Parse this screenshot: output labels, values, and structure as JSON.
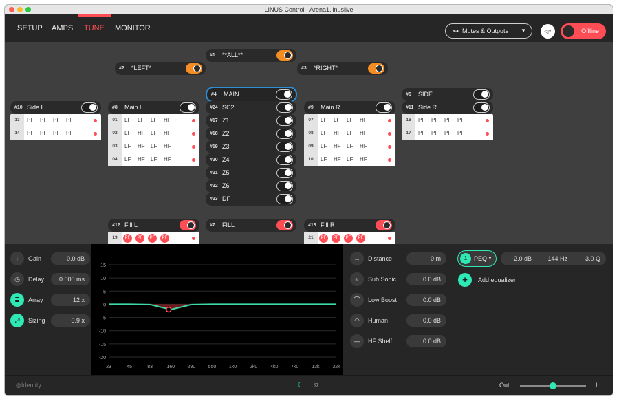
{
  "window_title": "LINUS Control - Arena1.linuslive",
  "tabs": [
    {
      "label": "SETUP"
    },
    {
      "label": "AMPS"
    },
    {
      "label": "TUNE"
    },
    {
      "label": "MONITOR"
    }
  ],
  "active_tab": "TUNE",
  "outputs_dropdown": {
    "label": "Mutes & Outputs"
  },
  "status": {
    "label": "Offline",
    "color": "#ff4d55"
  },
  "groups": {
    "all": {
      "num": "#1",
      "name": "**ALL**",
      "state": "orange"
    },
    "left": {
      "num": "#2",
      "name": "*LEFT*",
      "state": "orange"
    },
    "right": {
      "num": "#3",
      "name": "*RIGHT*",
      "state": "orange"
    },
    "main": {
      "num": "#4",
      "name": "MAIN",
      "state": "on"
    },
    "sc2": {
      "num": "#24",
      "name": "SC2",
      "state": "on"
    },
    "z1": {
      "num": "#17",
      "name": "Z1",
      "state": "on"
    },
    "z2": {
      "num": "#18",
      "name": "Z2",
      "state": "on"
    },
    "z3": {
      "num": "#19",
      "name": "Z3",
      "state": "on"
    },
    "z4": {
      "num": "#20",
      "name": "Z4",
      "state": "on"
    },
    "z5": {
      "num": "#21",
      "name": "Z5",
      "state": "on"
    },
    "z6": {
      "num": "#22",
      "name": "Z6",
      "state": "on"
    },
    "df": {
      "num": "#23",
      "name": "DF",
      "state": "on"
    },
    "side_l": {
      "num": "#10",
      "name": "Side L",
      "state": "on"
    },
    "main_l": {
      "num": "#8",
      "name": "Main L",
      "state": "on"
    },
    "main_r": {
      "num": "#9",
      "name": "Main R",
      "state": "on"
    },
    "side": {
      "num": "#6",
      "name": "SIDE",
      "state": "on"
    },
    "side_r": {
      "num": "#11",
      "name": "Side R",
      "state": "on"
    },
    "fill_l": {
      "num": "#12",
      "name": "Fill L",
      "state": "red"
    },
    "fill": {
      "num": "#7",
      "name": "FILL",
      "state": "red"
    },
    "fill_r": {
      "num": "#13",
      "name": "Fill R",
      "state": "red"
    }
  },
  "amp_tables": {
    "side_l": [
      {
        "num": "13",
        "cells": [
          "PF",
          "PF",
          "PF",
          "PF"
        ]
      },
      {
        "num": "14",
        "cells": [
          "PF",
          "PF",
          "PF",
          "PF"
        ]
      }
    ],
    "main_l": [
      {
        "num": "01",
        "cells": [
          "LF",
          "LF",
          "LF",
          "HF"
        ]
      },
      {
        "num": "02",
        "cells": [
          "LF",
          "HF",
          "LF",
          "HF"
        ]
      },
      {
        "num": "03",
        "cells": [
          "LF",
          "HF",
          "LF",
          "HF"
        ]
      },
      {
        "num": "04",
        "cells": [
          "LF",
          "HF",
          "LF",
          "HF"
        ]
      }
    ],
    "main_r": [
      {
        "num": "07",
        "cells": [
          "LF",
          "LF",
          "LF",
          "HF"
        ]
      },
      {
        "num": "08",
        "cells": [
          "LF",
          "HF",
          "LF",
          "HF"
        ]
      },
      {
        "num": "09",
        "cells": [
          "LF",
          "HF",
          "LF",
          "HF"
        ]
      },
      {
        "num": "10",
        "cells": [
          "LF",
          "HF",
          "LF",
          "HF"
        ]
      }
    ],
    "side_r": [
      {
        "num": "16",
        "cells": [
          "PF",
          "PF",
          "PF",
          "PF"
        ]
      },
      {
        "num": "17",
        "cells": [
          "PF",
          "PF",
          "PF",
          "PF"
        ]
      }
    ],
    "fill_l": [
      {
        "num": "19",
        "cells": [
          "PF",
          "PF",
          "PF",
          "PF"
        ]
      }
    ],
    "fill_r": [
      {
        "num": "21",
        "cells": [
          "PF",
          "PF",
          "PF",
          "PF"
        ]
      }
    ]
  },
  "left_params": [
    {
      "label": "Gain",
      "value": "0.0 dB",
      "icon": "sliders-icon",
      "active": false
    },
    {
      "label": "Delay",
      "value": "0.000 ms",
      "icon": "clock-icon",
      "active": false
    },
    {
      "label": "Array",
      "value": "12 x",
      "icon": "array-icon",
      "active": true
    },
    {
      "label": "Sizing",
      "value": "0.9 x",
      "icon": "resize-icon",
      "active": true
    }
  ],
  "right_params": [
    {
      "label": "Distance",
      "value": "0 m",
      "icon": "distance-icon"
    },
    {
      "label": "Sub Sonic",
      "value": "0.0 dB",
      "icon": "subsonic-icon"
    },
    {
      "label": "Low Boost",
      "value": "0.0 dB",
      "icon": "lowboost-icon"
    },
    {
      "label": "Human",
      "value": "0.0 dB",
      "icon": "human-icon"
    },
    {
      "label": "HF Shelf",
      "value": "0.0 dB",
      "icon": "hfshelf-icon"
    }
  ],
  "eq": {
    "index": "1",
    "type": "PEQ",
    "gain": "-2.0 dB",
    "freq": "144 Hz",
    "q": "3.0 Q",
    "add_label": "Add equalizer"
  },
  "chart_data": {
    "type": "line",
    "y_ticks": [
      "15",
      "10",
      "5",
      "0",
      "-5",
      "-10",
      "-15",
      "-20"
    ],
    "x_ticks": [
      "23",
      "45",
      "83",
      "160",
      "290",
      "550",
      "1k0",
      "2k0",
      "4k0",
      "7k0",
      "13k",
      "32k"
    ],
    "ylim": [
      -20,
      15
    ],
    "series": [
      {
        "values": [
          0,
          0,
          -0.1,
          -2.0,
          -0.1,
          0,
          0,
          0,
          0,
          0,
          0,
          0
        ],
        "color": "#3fd9a6"
      }
    ],
    "handle": {
      "x": "144 Hz",
      "y": -2.0
    }
  },
  "footer": {
    "identity_label": "Identity",
    "out_label": "Out",
    "in_label": "In",
    "mix_value": 0.5
  }
}
